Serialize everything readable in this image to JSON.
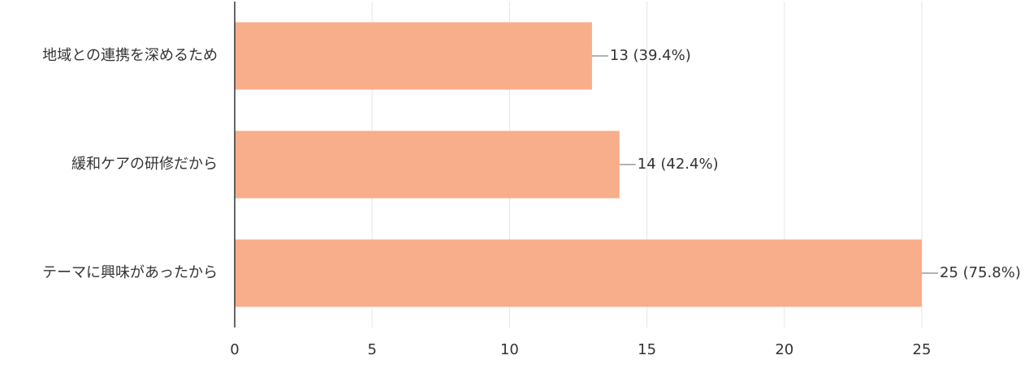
{
  "chart_data": {
    "type": "bar",
    "orientation": "horizontal",
    "categories": [
      "地域との連携を深めるため",
      "緩和ケアの研修だから",
      "テーマに興味があったから"
    ],
    "values": [
      13,
      14,
      25
    ],
    "value_labels": [
      "13 (39.4%)",
      "14 (42.4%)",
      "25 (75.8%)"
    ],
    "color": "#f8ad8b",
    "xlim": [
      0,
      25
    ],
    "xticks": [
      0,
      5,
      10,
      15,
      20,
      25
    ],
    "grid": true
  }
}
